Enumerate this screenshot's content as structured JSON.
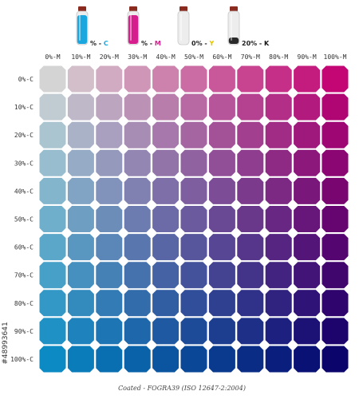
{
  "header": {
    "bottles": [
      {
        "name": "cyan",
        "label_value": "% - ",
        "label_letter": "C",
        "fill": "#1aa7e0",
        "letter_color": "#1aa7e0",
        "fill_fraction": 0.9
      },
      {
        "name": "magenta",
        "label_value": "% - ",
        "label_letter": "M",
        "fill": "#d61f8c",
        "letter_color": "#d61f8c",
        "fill_fraction": 0.9
      },
      {
        "name": "yellow",
        "label_value": "0% - ",
        "label_letter": "Y",
        "fill": "#f2f2f2",
        "letter_color": "#e6c400",
        "fill_fraction": 0.0
      },
      {
        "name": "black",
        "label_value": "20% - ",
        "label_letter": "K",
        "fill": "#2a2a2a",
        "letter_color": "#111111",
        "fill_fraction": 0.2
      }
    ]
  },
  "grid": {
    "column_labels": [
      "0%-M",
      "10%-M",
      "20%-M",
      "30%-M",
      "40%-M",
      "50%-M",
      "60%-M",
      "70%-M",
      "80%-M",
      "90%-M",
      "100%-M"
    ],
    "row_labels": [
      "0%-C",
      "10%-C",
      "20%-C",
      "30%-C",
      "40%-C",
      "50%-C",
      "60%-C",
      "70%-C",
      "80%-C",
      "90%-C",
      "100%-C"
    ],
    "cyan_levels": [
      0,
      10,
      20,
      30,
      40,
      50,
      60,
      70,
      80,
      90,
      100
    ],
    "magenta_levels": [
      0,
      10,
      20,
      30,
      40,
      50,
      60,
      70,
      80,
      90,
      100
    ],
    "black_level": 20
  },
  "footer": {
    "text": "Coated - FOGRA39 (ISO 12647-2:2004)"
  },
  "side_id": {
    "text": "#48993641"
  }
}
